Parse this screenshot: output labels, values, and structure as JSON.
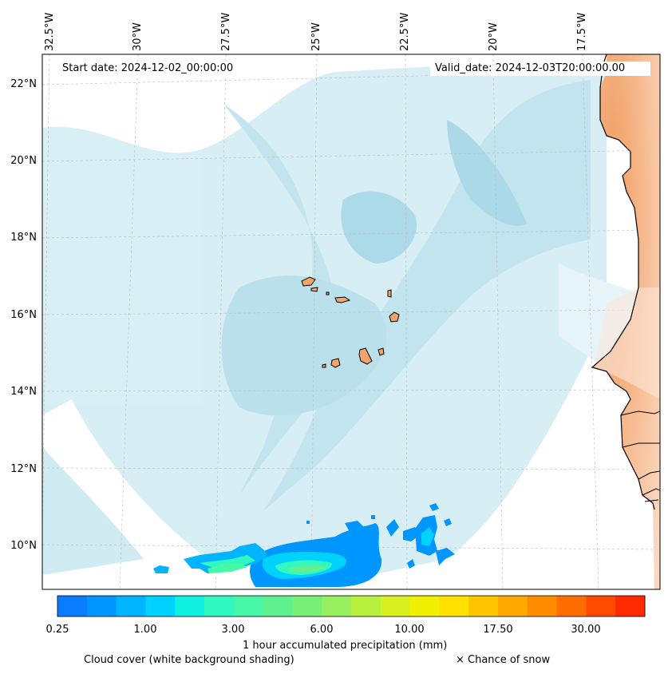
{
  "map": {
    "start_date": "Start date: 2024-12-02_00:00:00",
    "valid_date": "Valid_date: 2024-12-03T20:00:00.00",
    "lon_labels": [
      "32.5°W",
      "30°W",
      "27.5°W",
      "25°W",
      "22.5°W",
      "20°W",
      "17.5°W"
    ],
    "lat_labels": [
      "22°N",
      "20°N",
      "18°N",
      "16°N",
      "14°N",
      "12°N",
      "10°N"
    ],
    "land_color": "#f4a46a",
    "ocean_cloud_color": "#a8d8e6",
    "grid": true
  },
  "colorbar": {
    "label": "1 hour accumulated precipitation (mm)",
    "ticks": [
      "0.25",
      "1.00",
      "3.00",
      "6.00",
      "10.00",
      "17.50",
      "30.00"
    ],
    "colors": [
      "#0a7cff",
      "#0096ff",
      "#00b4ff",
      "#00d2ff",
      "#10f0e0",
      "#30f8c0",
      "#48f8a8",
      "#60f090",
      "#78f078",
      "#98f060",
      "#b8f040",
      "#d8f020",
      "#f0f000",
      "#ffe000",
      "#ffc400",
      "#ffa800",
      "#ff8c00",
      "#ff6c00",
      "#ff4a00",
      "#ff2a00"
    ]
  },
  "legend": {
    "cloud_cover": "Cloud cover (white background shading)",
    "snow": "× Chance of snow"
  }
}
